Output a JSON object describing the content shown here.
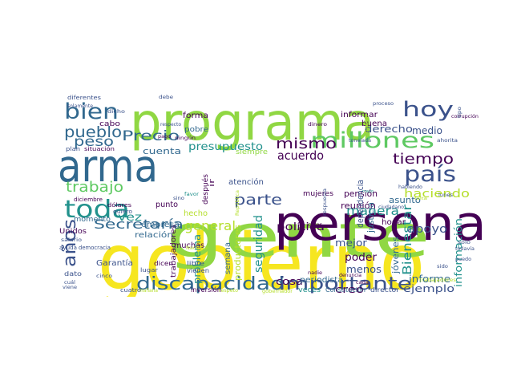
{
  "words": [
    {
      "text": "gobierno",
      "color": "#f6e620"
    },
    {
      "text": "gente",
      "color": "#90d743"
    },
    {
      "text": "programa",
      "color": "#90d743"
    },
    {
      "text": "persona",
      "color": "#440154"
    },
    {
      "text": "arma",
      "color": "#31688e"
    },
    {
      "text": "discapacidad",
      "color": "#31688e"
    },
    {
      "text": "importante",
      "color": "#3b528b"
    },
    {
      "text": "millones",
      "color": "#5ec962"
    },
    {
      "text": "país",
      "color": "#3b528b"
    },
    {
      "text": "bien",
      "color": "#31688e"
    },
    {
      "text": "hoy",
      "color": "#3b528b"
    },
    {
      "text": "toda",
      "color": "#21918c"
    },
    {
      "text": "trabajo",
      "color": "#5ec962"
    },
    {
      "text": "tiempo",
      "color": "#440154"
    },
    {
      "text": "pueblo",
      "color": "#31688e"
    },
    {
      "text": "mismo",
      "color": "#440154"
    },
    {
      "text": "años",
      "color": "#3b528b"
    },
    {
      "text": "Secretaría",
      "color": "#31688e"
    },
    {
      "text": "Precio",
      "color": "#31688e"
    },
    {
      "text": "parte",
      "color": "#3b528b"
    },
    {
      "text": "peso",
      "color": "#31688e"
    },
    {
      "text": "manera",
      "color": "#21918c"
    },
    {
      "text": "apoyo",
      "color": "#3b528b"
    },
    {
      "text": "haciendo",
      "color": "#b5de2b"
    },
    {
      "text": "información",
      "color": "#21918c"
    },
    {
      "text": "presupuesto",
      "color": "#21918c"
    },
    {
      "text": "acuerdo",
      "color": "#440154"
    },
    {
      "text": "derecho",
      "color": "#3b528b"
    },
    {
      "text": "medio",
      "color": "#3b528b"
    },
    {
      "text": "general",
      "color": "#b5de2b"
    },
    {
      "text": "seguridad",
      "color": "#21918c"
    },
    {
      "text": "política",
      "color": "#440154"
    },
    {
      "text": "Bienestar",
      "color": "#21918c"
    },
    {
      "text": "cosa",
      "color": "#440154"
    },
    {
      "text": "informe",
      "color": "#31688e"
    },
    {
      "text": "ejemplo",
      "color": "#3b528b"
    },
    {
      "text": "poder",
      "color": "#440154"
    },
    {
      "text": "menos",
      "color": "#3b528b"
    },
    {
      "text": "mejor",
      "color": "#3b528b"
    },
    {
      "text": "creo",
      "color": "#440154"
    },
    {
      "text": "problema",
      "color": "#21918c"
    },
    {
      "text": "cuenta",
      "color": "#31688e"
    },
    {
      "text": "vez",
      "color": "#21918c"
    },
    {
      "text": "empresa",
      "color": "#31688e"
    },
    {
      "text": "relación",
      "color": "#31688e"
    },
    {
      "text": "Garantía",
      "color": "#3b528b"
    },
    {
      "text": "jóvenes",
      "color": "#31688e"
    },
    {
      "text": "reunión",
      "color": "#440154"
    },
    {
      "text": "justicia",
      "color": "#31688e"
    },
    {
      "text": "asunto",
      "color": "#31688e"
    },
    {
      "text": "pensión",
      "color": "#440154"
    },
    {
      "text": "dependencia",
      "color": "#3b528b"
    },
    {
      "text": "productores",
      "color": "#b5de2b"
    },
    {
      "text": "periodista",
      "color": "#31688e"
    },
    {
      "text": "hogar",
      "color": "#440154"
    },
    {
      "text": "hecho",
      "color": "#b5de2b"
    },
    {
      "text": "muchas",
      "color": "#440154"
    },
    {
      "text": "semana",
      "color": "#31688e"
    },
    {
      "text": "trabajadores",
      "color": "#440154"
    },
    {
      "text": "atención",
      "color": "#3b528b"
    },
    {
      "text": "momento",
      "color": "#31688e"
    },
    {
      "text": "Unidos",
      "color": "#440154"
    },
    {
      "text": "punto",
      "color": "#440154"
    },
    {
      "text": "forma",
      "color": "#440154"
    },
    {
      "text": "buena",
      "color": "#440154"
    },
    {
      "text": "informar",
      "color": "#440154"
    },
    {
      "text": "pobre",
      "color": "#31688e"
    },
    {
      "text": "cabo",
      "color": "#440154"
    },
    {
      "text": "después",
      "color": "#440154"
    },
    {
      "text": "ir",
      "color": "#440154"
    },
    {
      "text": "siempre",
      "color": "#90d743"
    },
    {
      "text": "mujeres",
      "color": "#440154"
    },
    {
      "text": "veces",
      "color": "#21918c"
    },
    {
      "text": "director",
      "color": "#3b528b"
    },
    {
      "text": "inversión",
      "color": "#440154"
    },
    {
      "text": "Constitución",
      "color": "#31688e"
    },
    {
      "text": "dicen",
      "color": "#440154"
    },
    {
      "text": "lugar",
      "color": "#3b528b"
    },
    {
      "text": "libre",
      "color": "#3b528b"
    },
    {
      "text": "vienen",
      "color": "#3b528b"
    },
    {
      "text": "diferentes",
      "color": "#3b528b"
    },
    {
      "text": "solamente",
      "color": "#3b528b"
    },
    {
      "text": "dicho",
      "color": "#3b528b"
    },
    {
      "text": "plan",
      "color": "#3b528b"
    },
    {
      "text": "situación",
      "color": "#440154"
    },
    {
      "text": "dólares",
      "color": "#440154"
    },
    {
      "text": "diciembre",
      "color": "#440154"
    },
    {
      "text": "quiero",
      "color": "#3b528b"
    },
    {
      "text": "ayuda",
      "color": "#3b528b"
    },
    {
      "text": "democracia",
      "color": "#3b528b"
    },
    {
      "text": "salario",
      "color": "#3b528b"
    },
    {
      "text": "dato",
      "color": "#3b528b"
    },
    {
      "text": "cinco",
      "color": "#3b528b"
    },
    {
      "text": "cuál",
      "color": "#3b528b"
    },
    {
      "text": "viene",
      "color": "#3b528b"
    },
    {
      "text": "cuatro",
      "color": "#3b528b"
    },
    {
      "text": "mañana",
      "color": "#b5de2b"
    },
    {
      "text": "debe",
      "color": "#3b528b"
    },
    {
      "text": "respecto",
      "color": "#3b528b"
    },
    {
      "text": "pago",
      "color": "#440154"
    },
    {
      "text": "ningún",
      "color": "#440154"
    },
    {
      "text": "proceso",
      "color": "#3b528b"
    },
    {
      "text": "dinero",
      "color": "#440154"
    },
    {
      "text": "tonelada",
      "color": "#3b528b"
    },
    {
      "text": "corrupción",
      "color": "#440154"
    },
    {
      "text": "ahorita",
      "color": "#3b528b"
    },
    {
      "text": "lunes",
      "color": "#3b528b"
    },
    {
      "text": "habiendo",
      "color": "#3b528b"
    },
    {
      "text": "ciudadano",
      "color": "#3b528b"
    },
    {
      "text": "sólo",
      "color": "#3b528b"
    },
    {
      "text": "todavía",
      "color": "#3b528b"
    },
    {
      "text": "puedo",
      "color": "#3b528b"
    },
    {
      "text": "sido",
      "color": "#3b528b"
    },
    {
      "text": "trabajadores",
      "color": "#b5de2b"
    },
    {
      "text": "falta",
      "color": "#b5de2b"
    },
    {
      "text": "denuncia",
      "color": "#440154"
    },
    {
      "text": "cada",
      "color": "#440154"
    },
    {
      "text": "nadie",
      "color": "#440154"
    },
    {
      "text": "casos",
      "color": "#440154"
    },
    {
      "text": "sino",
      "color": "#3b528b"
    },
    {
      "text": "favor",
      "color": "#21918c"
    },
    {
      "text": "respuesta",
      "color": "#3b528b"
    },
    {
      "text": "hablar",
      "color": "#b5de2b"
    },
    {
      "text": "Nacional",
      "color": "#b5de2b"
    },
    {
      "text": "República",
      "color": "#b5de2b"
    },
    {
      "text": "gobernador",
      "color": "#b5de2b"
    },
    {
      "text": "respeto",
      "color": "#b5de2b"
    },
    {
      "text": "mayo",
      "color": "#21918c"
    },
    {
      "text": "tipo",
      "color": "#3b528b"
    }
  ]
}
